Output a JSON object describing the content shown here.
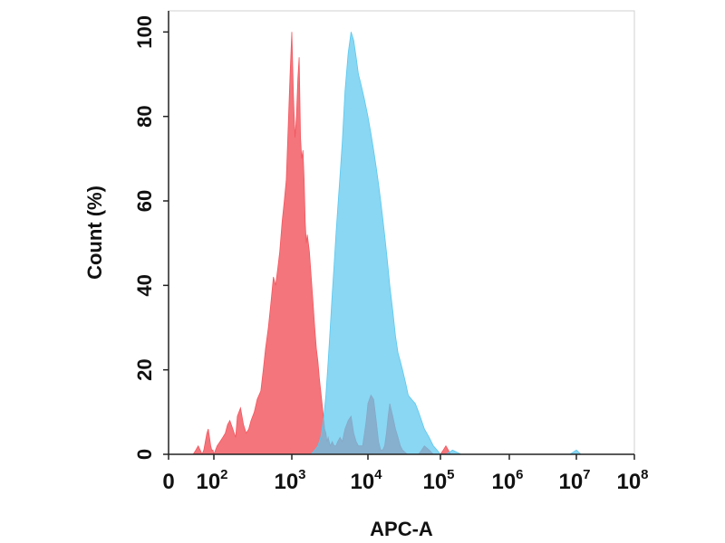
{
  "chart_data": {
    "type": "area",
    "xlabel": "APC-A",
    "ylabel": "Count  (%)",
    "x_scale": "log",
    "ylim": [
      0,
      105
    ],
    "y_ticks": [
      0,
      20,
      40,
      60,
      80,
      100
    ],
    "x_ticks": [
      {
        "base": "0",
        "exp": ""
      },
      {
        "base": "10",
        "exp": "2"
      },
      {
        "base": "10",
        "exp": "3"
      },
      {
        "base": "10",
        "exp": "4"
      },
      {
        "base": "10",
        "exp": "5"
      },
      {
        "base": "10",
        "exp": "6"
      },
      {
        "base": "10",
        "exp": "7"
      },
      {
        "base": "10",
        "exp": "8"
      }
    ],
    "x_tick_values": [
      0,
      100,
      1000,
      10000,
      100000,
      1000000,
      10000000,
      100000000
    ],
    "series": [
      {
        "color": "#f2575f",
        "opacity": 0.82,
        "x": [
          35,
          40,
          45,
          50,
          55,
          60,
          65,
          70,
          75,
          80,
          85,
          90,
          95,
          100,
          110,
          120,
          130,
          140,
          150,
          160,
          175,
          190,
          200,
          220,
          240,
          260,
          280,
          300,
          330,
          360,
          400,
          430,
          460,
          500,
          540,
          580,
          620,
          660,
          700,
          750,
          800,
          850,
          900,
          950,
          1000,
          1050,
          1100,
          1150,
          1200,
          1250,
          1300,
          1350,
          1400,
          1450,
          1500,
          1550,
          1600,
          1700,
          1800,
          1900,
          2000,
          2100,
          2200,
          2300,
          2400,
          2500,
          2600,
          2700,
          2800,
          2900,
          3000,
          3200,
          3400,
          3600,
          3800,
          4000,
          4300,
          4600,
          5000,
          5500,
          6000,
          6500,
          7000,
          7500,
          8000,
          8500,
          9000,
          9500,
          10000,
          11000,
          12000,
          13000,
          14000,
          15000,
          16000,
          17000,
          18000,
          19000,
          20000,
          22000,
          24000,
          26000,
          28000,
          30000,
          35000,
          40000,
          45000,
          50000,
          55000,
          60000,
          70000,
          80000,
          100000,
          110000,
          120000,
          130000,
          140000
        ],
        "y": [
          0,
          1,
          2,
          1,
          0,
          1,
          3,
          5,
          6,
          4,
          2,
          1,
          1,
          0,
          2,
          3,
          4,
          5,
          7,
          8,
          6,
          4,
          9,
          11,
          7,
          5,
          6,
          8,
          10,
          13,
          15,
          20,
          25,
          30,
          36,
          42,
          40,
          44,
          48,
          55,
          60,
          65,
          78,
          90,
          100,
          85,
          75,
          80,
          89,
          94,
          75,
          70,
          72,
          65,
          55,
          50,
          52,
          48,
          42,
          36,
          30,
          25,
          22,
          18,
          15,
          12,
          9,
          6,
          5,
          3,
          4,
          2,
          3,
          2,
          2,
          3,
          4,
          3,
          6,
          8,
          9,
          5,
          3,
          2,
          2,
          2,
          5,
          8,
          12,
          14,
          13,
          8,
          3,
          1,
          1,
          2,
          5,
          9,
          12,
          9,
          6,
          4,
          2,
          1,
          0,
          0,
          0,
          0,
          1,
          2,
          1,
          0,
          0,
          1,
          2,
          1,
          0
        ]
      },
      {
        "color": "#5bc8ef",
        "opacity": 0.72,
        "x": [
          1800,
          2000,
          2200,
          2400,
          2600,
          2800,
          3000,
          3200,
          3400,
          3600,
          3800,
          4000,
          4300,
          4600,
          5000,
          5500,
          6000,
          6500,
          7000,
          7500,
          8000,
          8500,
          9000,
          9500,
          10000,
          11000,
          12000,
          13000,
          14000,
          15000,
          16000,
          17000,
          18000,
          19000,
          20000,
          22000,
          24000,
          26000,
          28000,
          30000,
          33000,
          36000,
          40000,
          45000,
          50000,
          55000,
          60000,
          70000,
          80000,
          90000,
          100000,
          120000,
          150000,
          200000,
          300000,
          500000,
          1000000,
          3000000,
          8000000,
          10000000,
          12000000,
          15000000
        ],
        "y": [
          0,
          1,
          2,
          4,
          8,
          14,
          22,
          30,
          38,
          45,
          52,
          58,
          66,
          74,
          86,
          95,
          100,
          98,
          94,
          90,
          88,
          86,
          84,
          82,
          80,
          76,
          72,
          68,
          64,
          60,
          56,
          52,
          48,
          44,
          40,
          34,
          28,
          24,
          22,
          20,
          17,
          14,
          13,
          12,
          10,
          8,
          6,
          4,
          2,
          1,
          0,
          0,
          1,
          0,
          0,
          0,
          0,
          0,
          0,
          1,
          0,
          0
        ]
      }
    ]
  }
}
